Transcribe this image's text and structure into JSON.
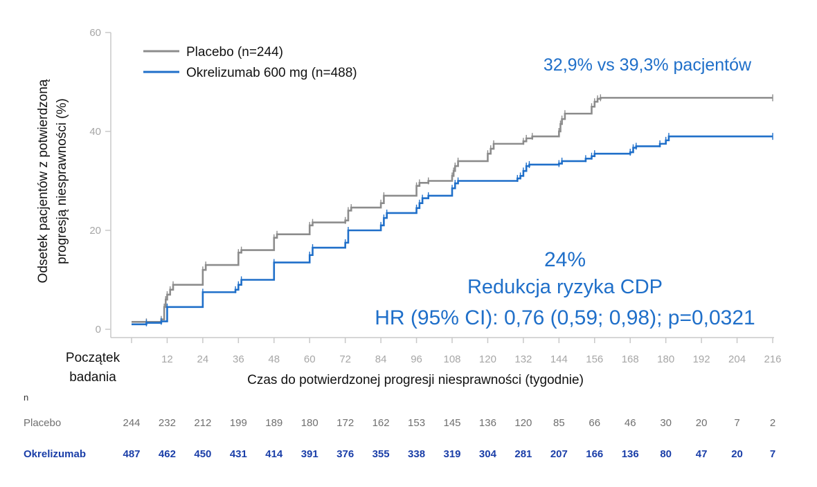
{
  "chart_data": {
    "type": "line",
    "step": true,
    "ylabel_line1": "Odsetek pacjentów z potwierdzoną",
    "ylabel_line2": "progresją niesprawności (%)",
    "xlabel": "Czas do potwierdzonej progresji niesprawności (tygodnie)",
    "xlabel_start_line1": "Początek",
    "xlabel_start_line2": "badania",
    "ylim": [
      0,
      60
    ],
    "xlim": [
      0,
      216
    ],
    "yticks": [
      0,
      20,
      40,
      60
    ],
    "xticks": [
      12,
      24,
      36,
      48,
      60,
      72,
      84,
      96,
      108,
      120,
      132,
      144,
      156,
      168,
      180,
      192,
      204,
      216
    ],
    "legend_position": "top-left",
    "colors": {
      "placebo": "#8c8c8c",
      "okrelizumab": "#1f6fc9",
      "annotation": "#1f6fc9",
      "risk_bold": "#1a3ea8"
    },
    "series": [
      {
        "name": "Placebo (n=244)",
        "x": [
          0,
          5,
          10,
          11,
          11.5,
          12,
          13,
          14,
          24,
          25,
          36,
          37,
          48,
          49,
          60,
          61,
          72,
          73,
          74,
          84,
          85,
          96,
          97,
          100,
          108,
          108.5,
          109,
          110,
          120,
          121,
          122,
          132,
          133,
          135,
          144,
          144.5,
          145,
          146,
          155,
          156,
          157,
          158,
          216
        ],
        "y": [
          1.5,
          1.5,
          2.0,
          4.5,
          6.0,
          7.0,
          8.0,
          9.0,
          12.0,
          13.0,
          15.5,
          16.0,
          18.5,
          19.2,
          21.0,
          21.6,
          22.0,
          24.0,
          24.6,
          25.5,
          27.0,
          29.0,
          29.6,
          30.0,
          31.0,
          32.0,
          33.0,
          34.0,
          35.5,
          36.5,
          37.5,
          38.0,
          38.6,
          39.0,
          40.0,
          41.5,
          42.5,
          43.6,
          45.0,
          46.0,
          46.6,
          46.8,
          46.8
        ]
      },
      {
        "name": "Okrelizumab 600 mg (n=488)",
        "x": [
          0,
          5,
          10,
          12,
          24,
          35,
          36,
          37,
          48,
          60,
          61,
          72,
          73,
          84,
          85,
          86,
          96,
          97,
          98,
          100,
          108,
          109,
          110,
          130,
          131,
          132,
          133,
          134,
          144,
          145,
          153,
          155,
          156,
          168,
          169,
          170,
          178,
          180,
          181,
          216
        ],
        "y": [
          1.0,
          1.3,
          1.6,
          4.5,
          7.5,
          8.0,
          9.0,
          10.0,
          13.5,
          15.0,
          16.5,
          17.5,
          20.0,
          21.0,
          22.5,
          23.5,
          24.5,
          25.5,
          26.5,
          27.0,
          28.5,
          29.5,
          30.0,
          30.5,
          31.0,
          32.0,
          33.0,
          33.3,
          33.5,
          34.0,
          34.5,
          35.0,
          35.5,
          35.8,
          36.7,
          37.0,
          37.5,
          38.2,
          39.0,
          39.0
        ]
      }
    ],
    "annotations": {
      "result": "32,9% vs 39,3% pacjentów",
      "reduction_pct": "24%",
      "reduction_text": "Redukcja ryzyka CDP",
      "hr": "HR (95% CI): 0,76 (0,59; 0,98); p=0,0321"
    },
    "risk_table": {
      "header": "n",
      "times": [
        0,
        12,
        24,
        36,
        48,
        60,
        72,
        84,
        96,
        108,
        120,
        132,
        144,
        156,
        168,
        180,
        192,
        204,
        216
      ],
      "rows": [
        {
          "label": "Placebo",
          "values": [
            "244",
            "232",
            "212",
            "199",
            "189",
            "180",
            "172",
            "162",
            "153",
            "145",
            "136",
            "120",
            "85",
            "66",
            "46",
            "30",
            "20",
            "7",
            "2"
          ]
        },
        {
          "label": "Okrelizumab",
          "values": [
            "487",
            "462",
            "450",
            "431",
            "414",
            "391",
            "376",
            "355",
            "338",
            "319",
            "304",
            "281",
            "207",
            "166",
            "136",
            "80",
            "47",
            "20",
            "7"
          ]
        }
      ]
    }
  }
}
